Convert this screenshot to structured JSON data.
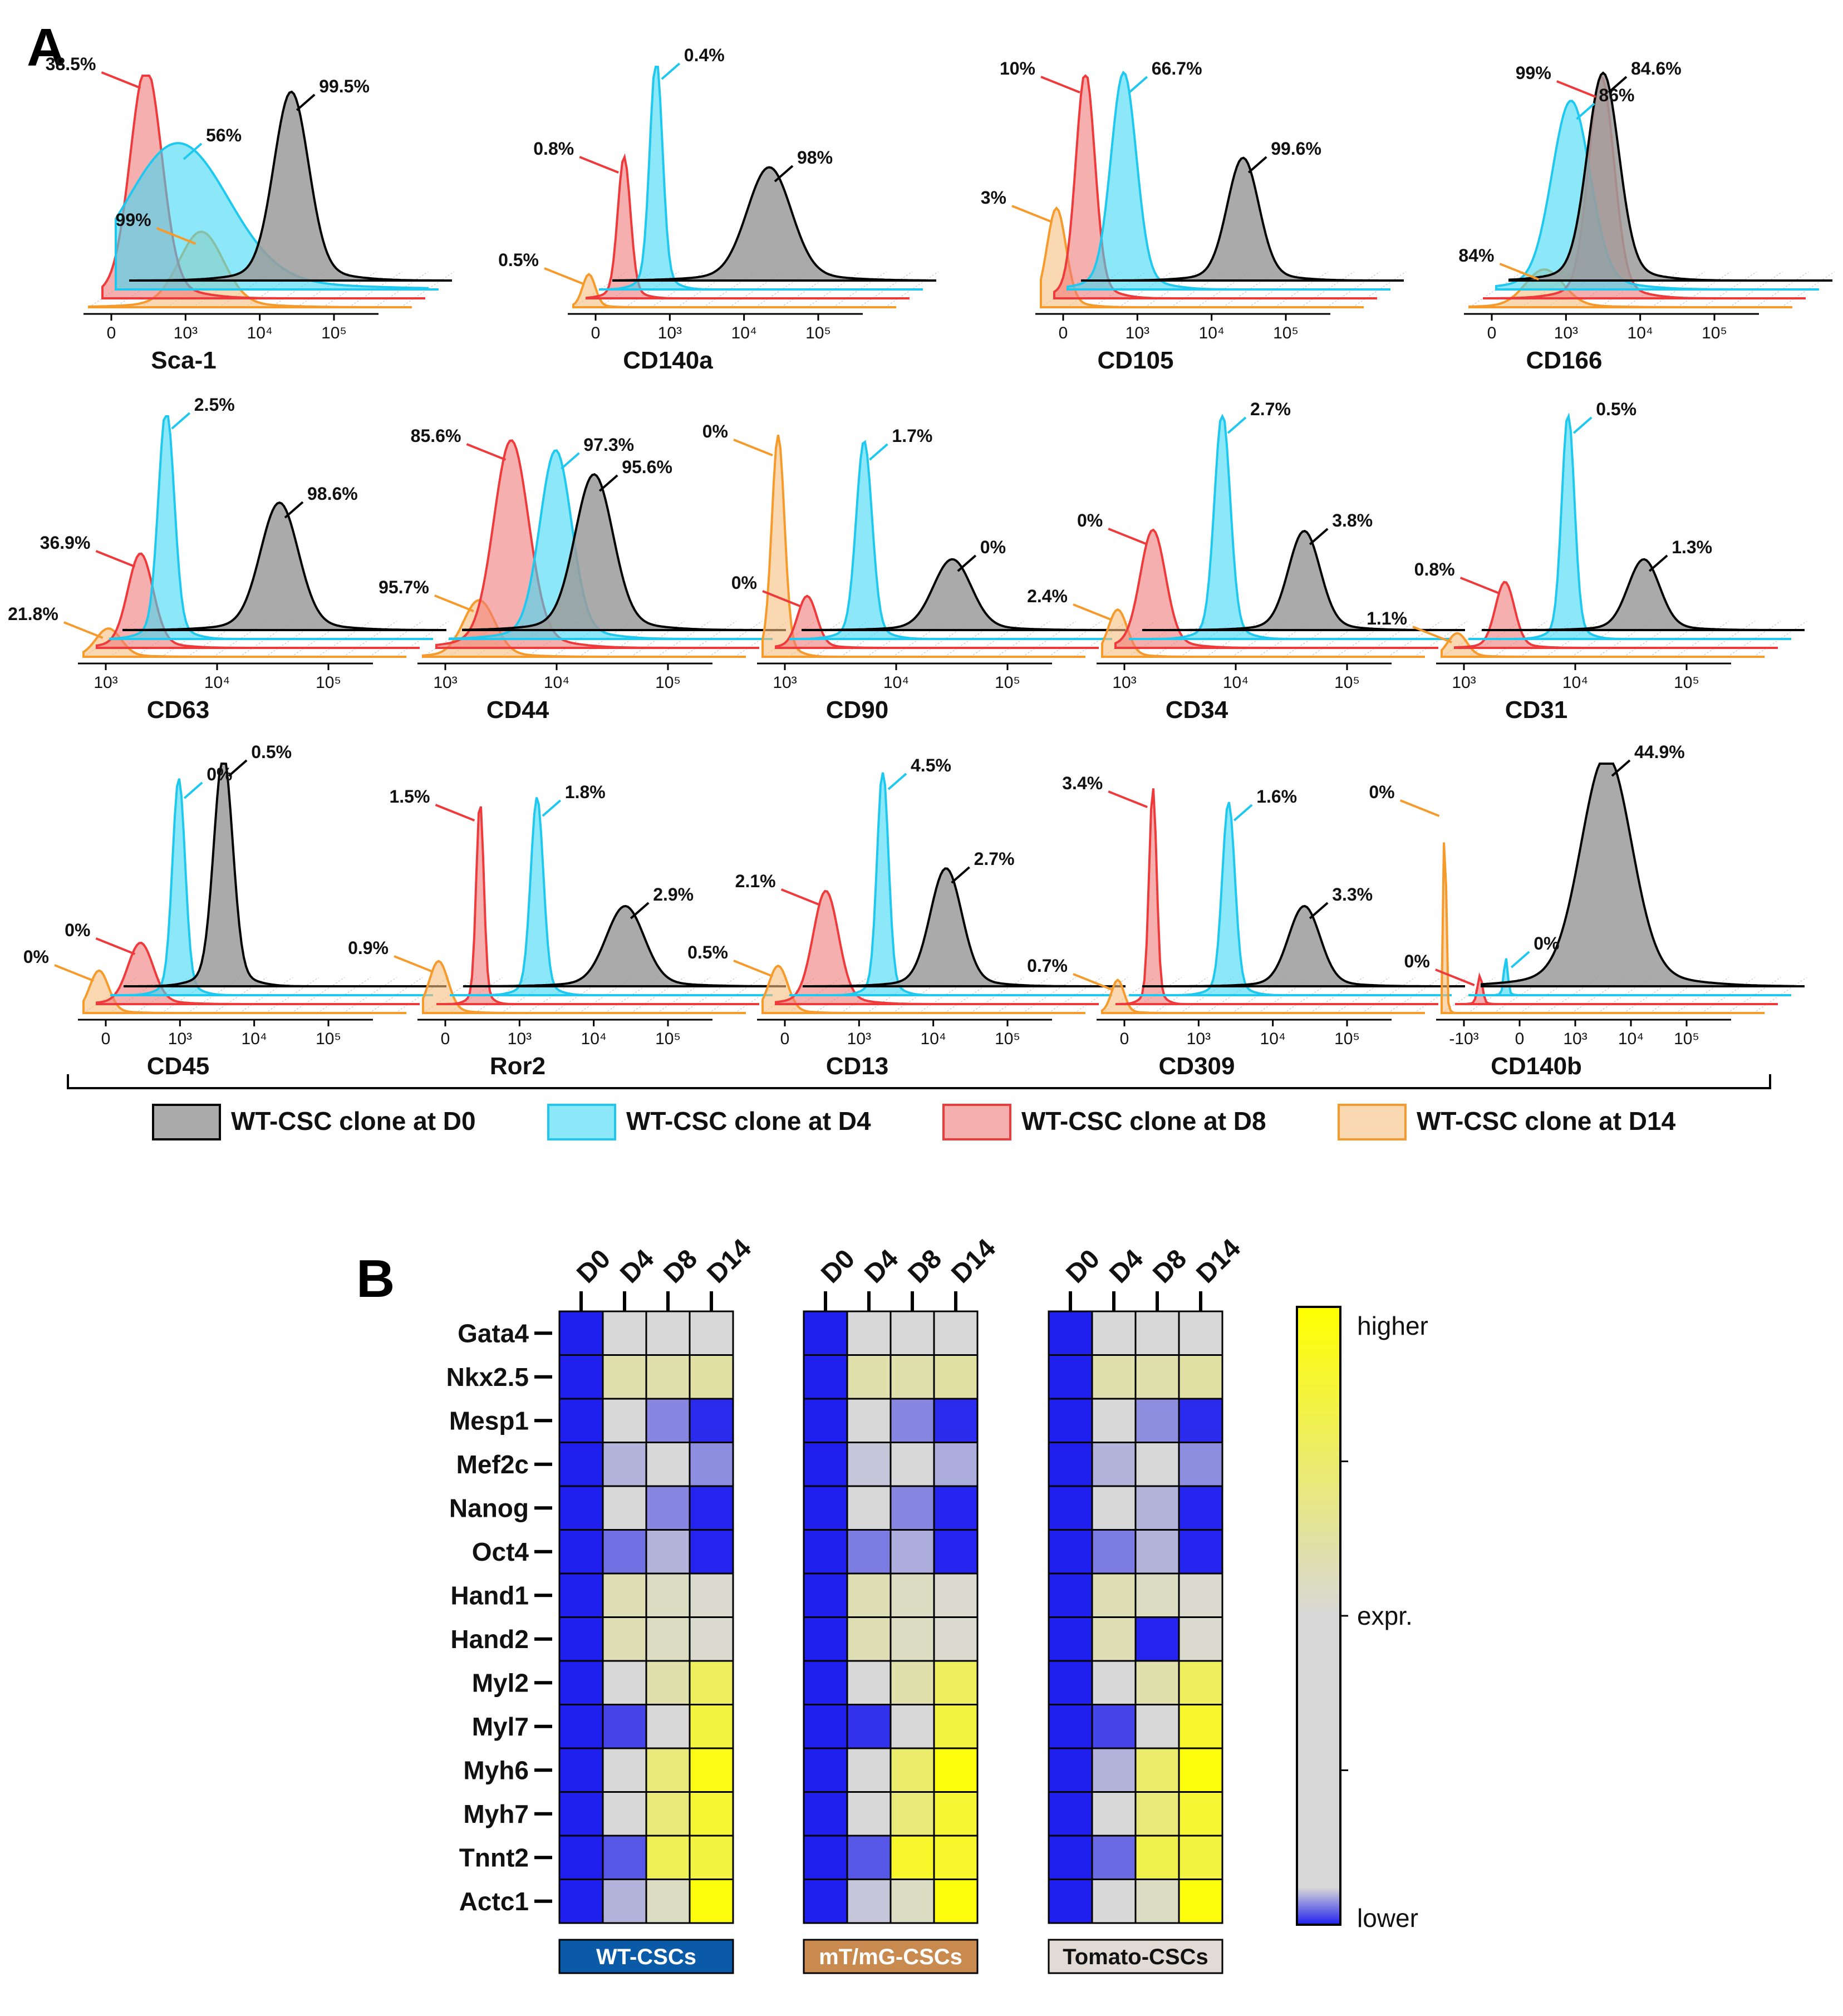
{
  "panel_a_label": "A",
  "panel_b_label": "B",
  "colors": {
    "D0": "#000000",
    "D0_fill": "#9b9b9b",
    "D4": "#1ec8ee",
    "D4_fill": "#3fd9f5",
    "D8": "#ee3a3a",
    "D8_fill": "#f07a7a",
    "D14": "#f59a2b",
    "D14_fill": "#f7be7e",
    "heat_low": "#2020ee",
    "heat_mid": "#d8d8d8",
    "heat_high": "#ffff00"
  },
  "legend": {
    "D0": "WT-CSC clone at D0",
    "D4": "WT-CSC clone at D4",
    "D8": "WT-CSC clone at D8",
    "D14": "WT-CSC clone at D14"
  },
  "chart_data": [
    {
      "type": "histogram-stack",
      "panel": "A",
      "note": "flow cytometry overlays; percentages are printed positive fractions per time point",
      "xlabel_markers": [
        {
          "marker": "Sca-1",
          "axis_ticks": [
            "0",
            "10³",
            "10⁴",
            "10⁵"
          ],
          "pct": {
            "D0": "99.5%",
            "D4": "56%",
            "D8": "38.5%",
            "D14": "99%"
          }
        },
        {
          "marker": "CD140a",
          "axis_ticks": [
            "0",
            "10³",
            "10⁴",
            "10⁵"
          ],
          "pct": {
            "D0": "98%",
            "D4": "0.4%",
            "D8": "0.8%",
            "D14": "0.5%"
          }
        },
        {
          "marker": "CD105",
          "axis_ticks": [
            "0",
            "10³",
            "10⁴",
            "10⁵"
          ],
          "pct": {
            "D0": "99.6%",
            "D4": "66.7%",
            "D8": "10%",
            "D14": "3%"
          }
        },
        {
          "marker": "CD166",
          "axis_ticks": [
            "0",
            "10³",
            "10⁴",
            "10⁵"
          ],
          "pct": {
            "D0": "84.6%",
            "D4": "86%",
            "D8": "99%",
            "D14": "84%"
          }
        },
        {
          "marker": "CD63",
          "axis_ticks": [
            "10³",
            "10⁴",
            "10⁵"
          ],
          "pct": {
            "D0": "98.6%",
            "D4": "2.5%",
            "D8": "36.9%",
            "D14": "21.8%"
          }
        },
        {
          "marker": "CD44",
          "axis_ticks": [
            "10³",
            "10⁴",
            "10⁵"
          ],
          "pct": {
            "D0": "95.6%",
            "D4": "97.3%",
            "D8": "85.6%",
            "D14": "95.7%"
          }
        },
        {
          "marker": "CD90",
          "axis_ticks": [
            "10³",
            "10⁴",
            "10⁵"
          ],
          "pct": {
            "D0": "0%",
            "D4": "1.7%",
            "D8": "0%",
            "D14": "0%"
          }
        },
        {
          "marker": "CD34",
          "axis_ticks": [
            "10³",
            "10⁴",
            "10⁵"
          ],
          "pct": {
            "D0": "3.8%",
            "D4": "2.7%",
            "D8": "0%",
            "D14": "2.4%"
          }
        },
        {
          "marker": "CD31",
          "axis_ticks": [
            "10³",
            "10⁴",
            "10⁵"
          ],
          "pct": {
            "D0": "1.3%",
            "D4": "0.5%",
            "D8": "0.8%",
            "D14": "1.1%"
          }
        },
        {
          "marker": "CD45",
          "axis_ticks": [
            "0",
            "10³",
            "10⁴",
            "10⁵"
          ],
          "pct": {
            "D0": "0.5%",
            "D4": "0%",
            "D8": "0%",
            "D14": "0%"
          }
        },
        {
          "marker": "Ror2",
          "axis_ticks": [
            "0",
            "10³",
            "10⁴",
            "10⁵"
          ],
          "pct": {
            "D0": "2.9%",
            "D4": "1.8%",
            "D8": "1.5%",
            "D14": "0.9%"
          }
        },
        {
          "marker": "CD13",
          "axis_ticks": [
            "0",
            "10³",
            "10⁴",
            "10⁵"
          ],
          "pct": {
            "D0": "2.7%",
            "D4": "4.5%",
            "D8": "2.1%",
            "D14": "0.5%"
          }
        },
        {
          "marker": "CD309",
          "axis_ticks": [
            "0",
            "10³",
            "10⁴",
            "10⁵"
          ],
          "pct": {
            "D0": "3.3%",
            "D4": "1.6%",
            "D8": "3.4%",
            "D14": "0.7%"
          }
        },
        {
          "marker": "CD140b",
          "axis_ticks": [
            "-10³",
            "0",
            "10³",
            "10⁴",
            "10⁵"
          ],
          "pct": {
            "D0": "44.9%",
            "D4": "0%",
            "D8": "0%",
            "D14": "0%"
          }
        }
      ]
    },
    {
      "type": "heatmap",
      "panel": "B",
      "columns": [
        "D0",
        "D4",
        "D8",
        "D14"
      ],
      "rows": [
        "Gata4",
        "Nkx2.5",
        "Mesp1",
        "Mef2c",
        "Nanog",
        "Oct4",
        "Hand1",
        "Hand2",
        "Myl2",
        "Myl7",
        "Myh6",
        "Myh7",
        "Tnnt2",
        "Actc1"
      ],
      "scale": {
        "top": "higher",
        "mid": "expr.",
        "bottom": "lower",
        "min": 0,
        "max": 1
      },
      "groups": [
        {
          "label": "WT-CSCs",
          "label_bg": "#0b5aa8",
          "label_color": "#ffffff",
          "values": [
            [
              0.0,
              0.5,
              0.5,
              0.5
            ],
            [
              0.0,
              0.6,
              0.6,
              0.62
            ],
            [
              0.0,
              0.5,
              0.28,
              0.03
            ],
            [
              0.0,
              0.4,
              0.5,
              0.3
            ],
            [
              0.0,
              0.5,
              0.28,
              0.01
            ],
            [
              0.0,
              0.22,
              0.4,
              0.01
            ],
            [
              0.0,
              0.58,
              0.55,
              0.52
            ],
            [
              0.0,
              0.58,
              0.55,
              0.52
            ],
            [
              0.0,
              0.5,
              0.6,
              0.78
            ],
            [
              0.0,
              0.1,
              0.5,
              0.85
            ],
            [
              0.0,
              0.5,
              0.72,
              0.95
            ],
            [
              0.0,
              0.5,
              0.72,
              0.88
            ],
            [
              0.0,
              0.15,
              0.8,
              0.85
            ],
            [
              0.0,
              0.4,
              0.55,
              0.97
            ]
          ]
        },
        {
          "label": "mT/mG-CSCs",
          "label_bg": "#c98a4f",
          "label_color": "#ffffff",
          "values": [
            [
              0.0,
              0.5,
              0.5,
              0.5
            ],
            [
              0.0,
              0.6,
              0.6,
              0.62
            ],
            [
              0.0,
              0.5,
              0.28,
              0.03
            ],
            [
              0.0,
              0.45,
              0.5,
              0.38
            ],
            [
              0.0,
              0.5,
              0.28,
              0.01
            ],
            [
              0.0,
              0.25,
              0.38,
              0.01
            ],
            [
              0.0,
              0.58,
              0.55,
              0.52
            ],
            [
              0.0,
              0.58,
              0.55,
              0.52
            ],
            [
              0.0,
              0.5,
              0.6,
              0.78
            ],
            [
              0.0,
              0.05,
              0.5,
              0.85
            ],
            [
              0.0,
              0.5,
              0.75,
              0.97
            ],
            [
              0.0,
              0.5,
              0.72,
              0.88
            ],
            [
              0.0,
              0.15,
              0.9,
              0.9
            ],
            [
              0.0,
              0.45,
              0.55,
              0.97
            ]
          ]
        },
        {
          "label": "Tomato-CSCs",
          "label_bg": "#e2dbd5",
          "label_color": "#111111",
          "values": [
            [
              0.0,
              0.5,
              0.5,
              0.5
            ],
            [
              0.0,
              0.6,
              0.6,
              0.62
            ],
            [
              0.0,
              0.5,
              0.3,
              0.03
            ],
            [
              0.0,
              0.4,
              0.5,
              0.3
            ],
            [
              0.0,
              0.5,
              0.4,
              0.01
            ],
            [
              0.0,
              0.25,
              0.4,
              0.01
            ],
            [
              0.0,
              0.58,
              0.55,
              0.52
            ],
            [
              0.0,
              0.58,
              0.01,
              0.52
            ],
            [
              0.0,
              0.5,
              0.6,
              0.78
            ],
            [
              0.0,
              0.1,
              0.5,
              0.9
            ],
            [
              0.0,
              0.4,
              0.75,
              0.97
            ],
            [
              0.0,
              0.5,
              0.72,
              0.88
            ],
            [
              0.0,
              0.2,
              0.82,
              0.85
            ],
            [
              0.0,
              0.5,
              0.55,
              0.97
            ]
          ]
        }
      ]
    }
  ]
}
